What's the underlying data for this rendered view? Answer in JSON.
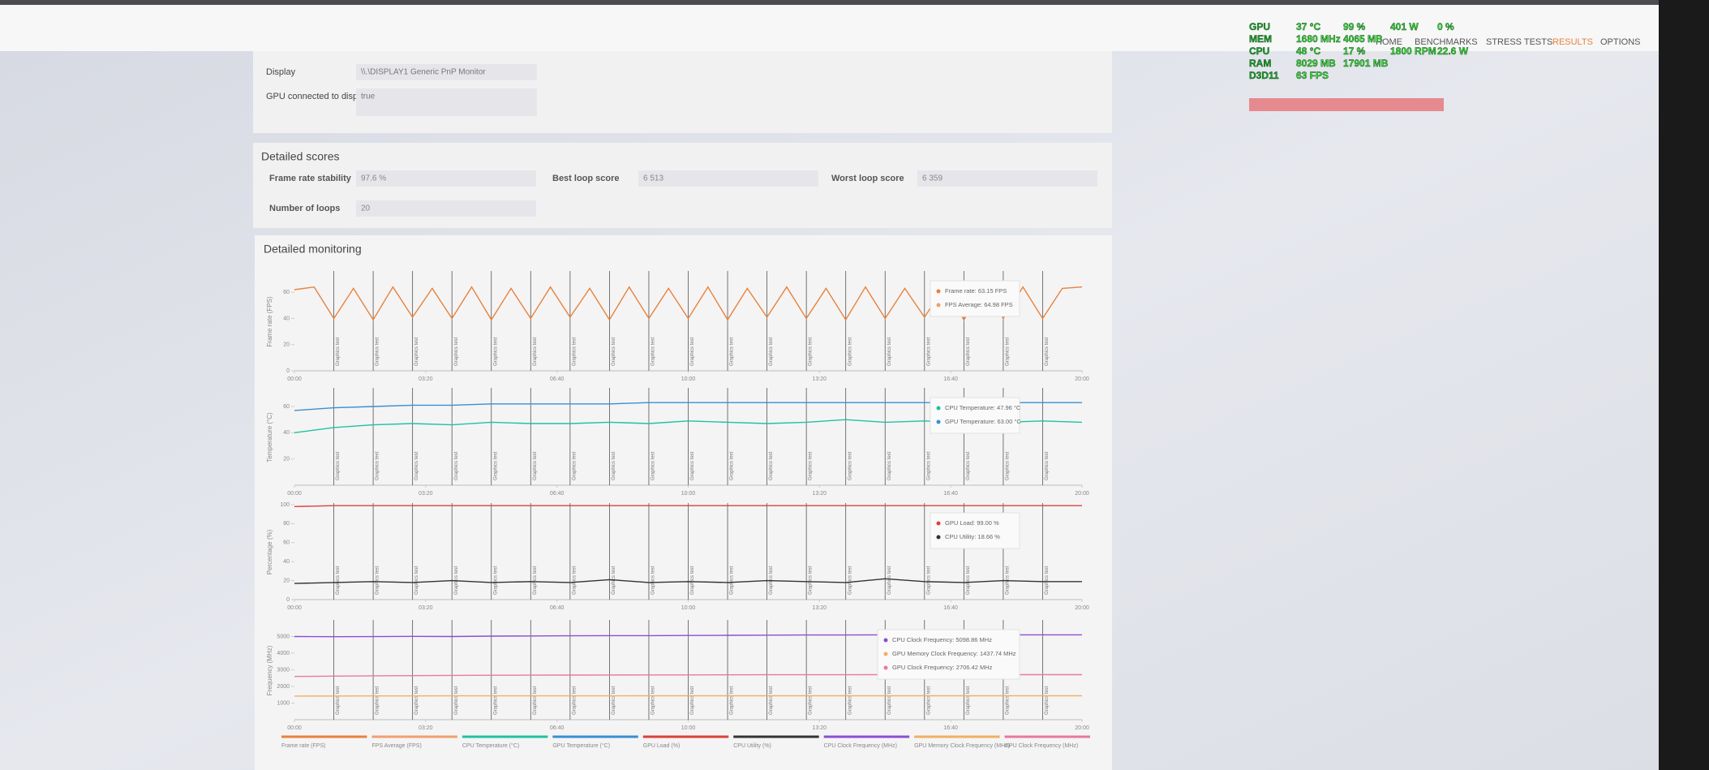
{
  "nav": [
    "HOME",
    "BENCHMARKS",
    "STRESS TESTS",
    "RESULTS",
    "OPTIONS"
  ],
  "nav_active": 3,
  "osd": [
    [
      "GPU",
      "37 °C",
      "99 %",
      "401 W",
      "0 %"
    ],
    [
      "MEM",
      "1680 MHz",
      "4065 MB"
    ],
    [
      "CPU",
      "48 °C",
      "17 %",
      "1800 RPM",
      "22.6 W"
    ],
    [
      "RAM",
      "8029 MB",
      "17901 MB"
    ],
    [
      "D3D11",
      "63 FPS"
    ]
  ],
  "info": [
    {
      "label": "Display",
      "value": "\\\\.\\DISPLAY1 Generic PnP Monitor"
    },
    {
      "label": "GPU connected to display",
      "value": "true"
    }
  ],
  "scores": {
    "title": "Detailed scores",
    "items": [
      {
        "label": "Frame rate stability",
        "value": "97.6 %"
      },
      {
        "label": "Best loop score",
        "value": "6 513"
      },
      {
        "label": "Worst loop score",
        "value": "6 359"
      },
      {
        "label": "Number of loops",
        "value": "20"
      }
    ]
  },
  "monitoring": {
    "title": "Detailed monitoring",
    "marker_label": "Graphics test",
    "markers": [
      1,
      2,
      3,
      4,
      5,
      6,
      7,
      8,
      9,
      10,
      11,
      12,
      13,
      14,
      15,
      16,
      17,
      18,
      19
    ]
  },
  "chart_data": [
    {
      "type": "line",
      "ylabel": "Frame rate (FPS)",
      "xlim": [
        0,
        20
      ],
      "ylim": [
        0,
        75
      ],
      "yticks": [
        0,
        20,
        40,
        60
      ],
      "xticks": [
        {
          "value": 0,
          "label": "00:00"
        },
        {
          "value": 3.333,
          "label": "03:20"
        },
        {
          "value": 6.667,
          "label": "06:40"
        },
        {
          "value": 10,
          "label": "10:00"
        },
        {
          "value": 13.333,
          "label": "13:20"
        },
        {
          "value": 16.667,
          "label": "16:40"
        },
        {
          "value": 20,
          "label": "20:00"
        }
      ],
      "x": [
        0,
        0.5,
        1,
        1.5,
        2,
        2.5,
        3,
        3.5,
        4,
        4.5,
        5,
        5.5,
        6,
        6.5,
        7,
        7.5,
        8,
        8.5,
        9,
        9.5,
        10,
        10.5,
        11,
        11.5,
        12,
        12.5,
        13,
        13.5,
        14,
        14.5,
        15,
        15.5,
        16,
        16.5,
        17,
        17.5,
        18,
        18.5,
        19,
        19.5,
        20
      ],
      "series": [
        {
          "name": "Frame rate (FPS)",
          "color": "#e8823a",
          "tooltip": "Frame rate: 63.15 FPS",
          "values": [
            62,
            64,
            40,
            63,
            39,
            64,
            41,
            63,
            40,
            64,
            39,
            63,
            40,
            64,
            41,
            63,
            39,
            64,
            40,
            63,
            40,
            64,
            39,
            63,
            41,
            64,
            40,
            63,
            39,
            64,
            40,
            63,
            41,
            64,
            39,
            63,
            40,
            64,
            40,
            63,
            64
          ]
        },
        {
          "name": "FPS Average (FPS)",
          "color": "#f0a070",
          "tooltip": "FPS Average: 64.98 FPS"
        }
      ]
    },
    {
      "type": "line",
      "ylabel": "Temperature (°C)",
      "xlim": [
        0,
        20
      ],
      "ylim": [
        0,
        73
      ],
      "yticks": [
        20,
        40,
        60
      ],
      "xticks": [
        {
          "value": 0,
          "label": "00:00"
        },
        {
          "value": 3.333,
          "label": "03:20"
        },
        {
          "value": 6.667,
          "label": "06:40"
        },
        {
          "value": 10,
          "label": "10:00"
        },
        {
          "value": 13.333,
          "label": "13:20"
        },
        {
          "value": 16.667,
          "label": "16:40"
        },
        {
          "value": 20,
          "label": "20:00"
        }
      ],
      "x": [
        0,
        1,
        2,
        3,
        4,
        5,
        6,
        7,
        8,
        9,
        10,
        11,
        12,
        13,
        14,
        15,
        16,
        17,
        18,
        19,
        20
      ],
      "series": [
        {
          "name": "CPU Temperature (°C)",
          "color": "#1fc2a0",
          "tooltip": "CPU Temperature: 47.96 °C",
          "values": [
            40,
            44,
            46,
            47,
            46,
            48,
            47,
            47,
            48,
            47,
            49,
            48,
            47,
            48,
            50,
            48,
            49,
            48,
            48,
            49,
            48
          ]
        },
        {
          "name": "GPU Temperature (°C)",
          "color": "#3a8fd0",
          "tooltip": "GPU Temperature: 63.00 °C",
          "values": [
            57,
            59,
            60,
            61,
            61,
            62,
            62,
            62,
            62,
            63,
            63,
            63,
            63,
            63,
            63,
            63,
            63,
            63,
            63,
            63,
            63
          ]
        }
      ]
    },
    {
      "type": "line",
      "ylabel": "Percentage (%)",
      "xlim": [
        0,
        20
      ],
      "ylim": [
        0,
        100
      ],
      "yticks": [
        0,
        20,
        40,
        60,
        80,
        100
      ],
      "xticks": [
        {
          "value": 0,
          "label": "00:00"
        },
        {
          "value": 3.333,
          "label": "03:20"
        },
        {
          "value": 6.667,
          "label": "06:40"
        },
        {
          "value": 10,
          "label": "10:00"
        },
        {
          "value": 13.333,
          "label": "13:20"
        },
        {
          "value": 16.667,
          "label": "16:40"
        },
        {
          "value": 20,
          "label": "20:00"
        }
      ],
      "x": [
        0,
        1,
        2,
        3,
        4,
        5,
        6,
        7,
        8,
        9,
        10,
        11,
        12,
        13,
        14,
        15,
        16,
        17,
        18,
        19,
        20
      ],
      "series": [
        {
          "name": "GPU Load (%)",
          "color": "#d9423a",
          "tooltip": "GPU Load: 99.00 %",
          "values": [
            98,
            99,
            99,
            99,
            99,
            99,
            99,
            99,
            99,
            99,
            99,
            99,
            99,
            99,
            99,
            99,
            99,
            99,
            99,
            99,
            99
          ]
        },
        {
          "name": "CPU Utility (%)",
          "color": "#333333",
          "tooltip": "CPU Utility: 18.66 %",
          "values": [
            17,
            18,
            19,
            18,
            20,
            18,
            19,
            18,
            21,
            18,
            19,
            18,
            20,
            19,
            18,
            22,
            19,
            18,
            20,
            19,
            19
          ]
        }
      ]
    },
    {
      "type": "line",
      "ylabel": "Frequency (MHz)",
      "xlim": [
        0,
        20
      ],
      "ylim": [
        0,
        5900
      ],
      "yticks": [
        1000,
        2000,
        3000,
        4000,
        5000
      ],
      "xticks": [
        {
          "value": 0,
          "label": "00:00"
        },
        {
          "value": 3.333,
          "label": "03:20"
        },
        {
          "value": 6.667,
          "label": "06:40"
        },
        {
          "value": 10,
          "label": "10:00"
        },
        {
          "value": 13.333,
          "label": "13:20"
        },
        {
          "value": 16.667,
          "label": "16:40"
        },
        {
          "value": 20,
          "label": "20:00"
        }
      ],
      "x": [
        0,
        1,
        2,
        3,
        4,
        5,
        6,
        7,
        8,
        9,
        10,
        11,
        12,
        13,
        14,
        15,
        16,
        17,
        18,
        19,
        20
      ],
      "series": [
        {
          "name": "CPU Clock Frequency (MHz)",
          "color": "#8b4fd0",
          "tooltip": "CPU Clock Frequency: 5098.86 MHz",
          "values": [
            5000,
            4990,
            4995,
            5010,
            5000,
            5020,
            5030,
            5040,
            5050,
            5050,
            5060,
            5070,
            5080,
            5090,
            5090,
            5100,
            5100,
            5100,
            5098,
            5100,
            5099
          ]
        },
        {
          "name": "GPU Memory Clock Frequency (MHz)",
          "color": "#f0b060",
          "tooltip": "GPU Memory Clock Frequency: 1437.74 MHz",
          "values": [
            1420,
            1425,
            1428,
            1430,
            1432,
            1433,
            1434,
            1435,
            1435,
            1436,
            1436,
            1436,
            1437,
            1437,
            1437,
            1437,
            1437,
            1438,
            1438,
            1437,
            1438
          ]
        },
        {
          "name": "GPU Clock Frequency (MHz)",
          "color": "#e87a9a",
          "tooltip": "GPU Clock Frequency: 2706.42 MHz",
          "values": [
            2600,
            2620,
            2640,
            2650,
            2660,
            2670,
            2675,
            2680,
            2685,
            2690,
            2690,
            2695,
            2700,
            2700,
            2702,
            2704,
            2705,
            2705,
            2706,
            2706,
            2706
          ]
        }
      ]
    }
  ]
}
